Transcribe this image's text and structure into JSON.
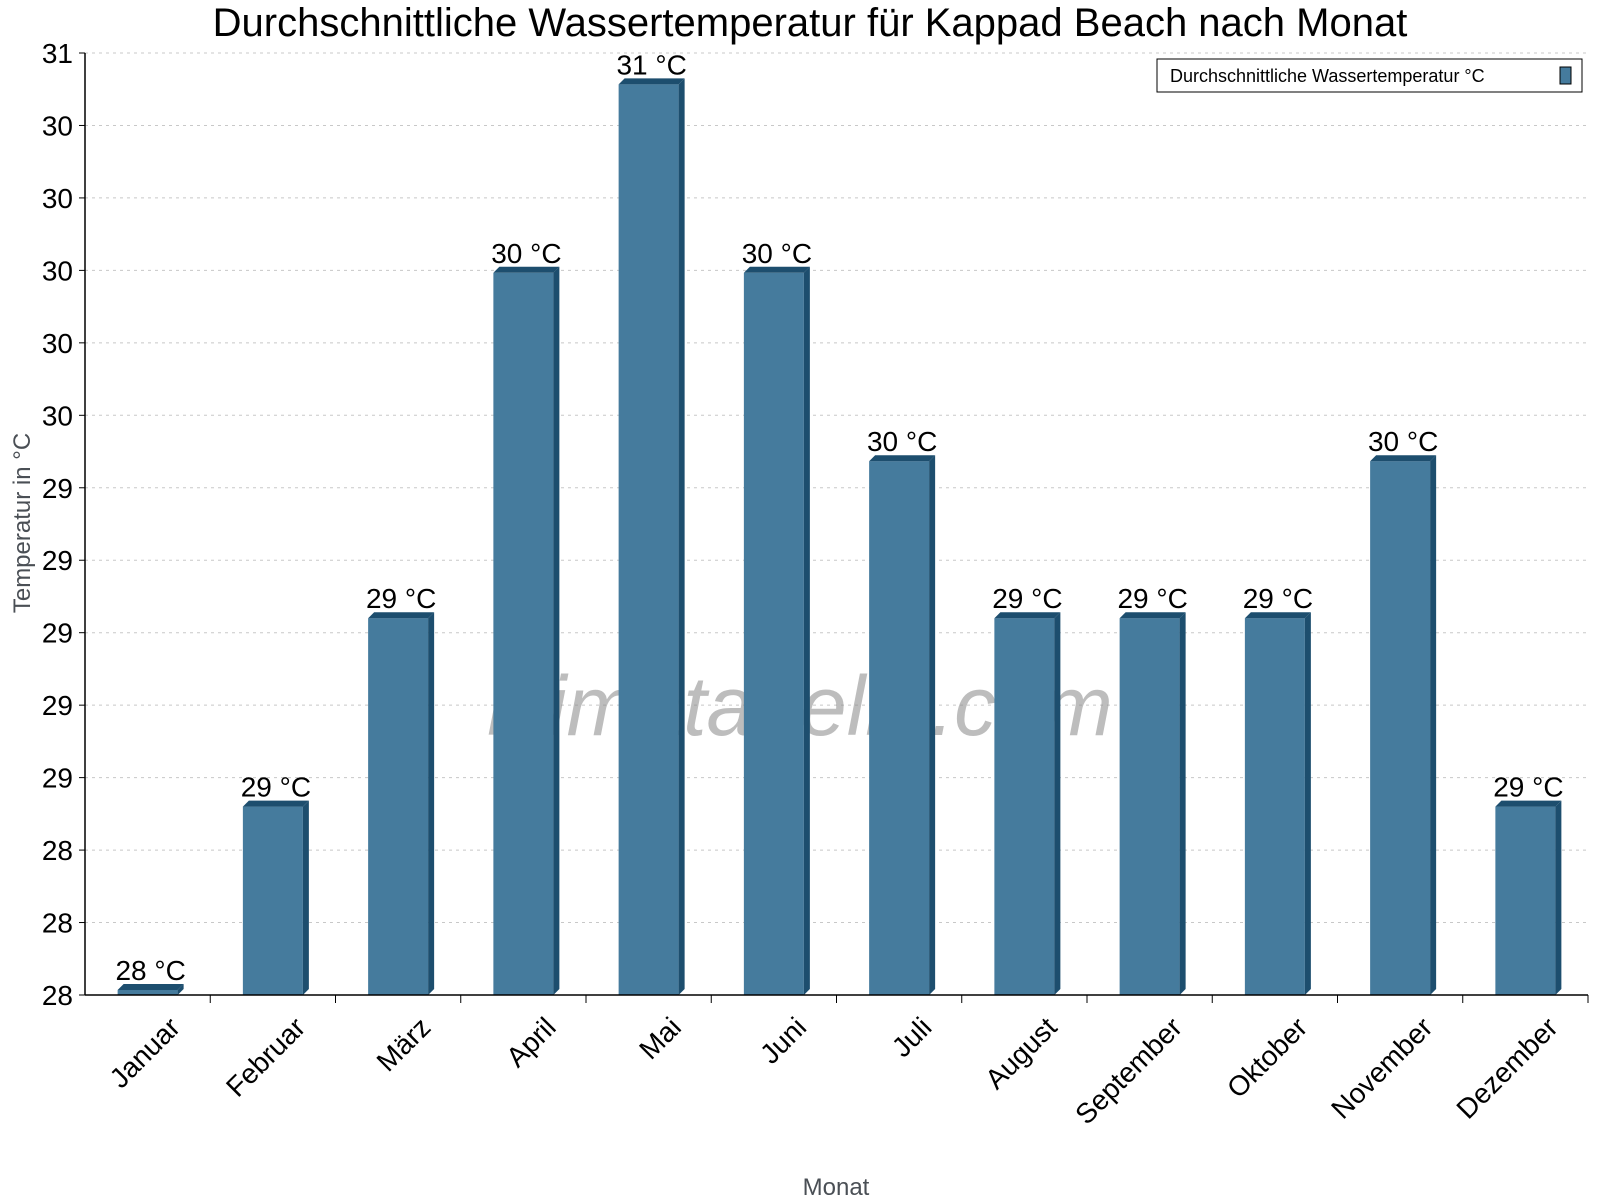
{
  "chart_data": {
    "type": "bar",
    "title": "Durchschnittliche Wassertemperatur für Kappad Beach nach Monat",
    "xlabel": "Monat",
    "ylabel": "Temperatur in °C",
    "categories": [
      "Januar",
      "Februar",
      "März",
      "April",
      "Mai",
      "Juni",
      "Juli",
      "August",
      "September",
      "Oktober",
      "November",
      "Dezember"
    ],
    "series": [
      {
        "name": "Durchschnittliche Wassertemperatur °C",
        "values": [
          28.0,
          28.6,
          29.2,
          30.3,
          30.9,
          30.3,
          29.7,
          29.2,
          29.2,
          29.2,
          29.7,
          28.6
        ]
      }
    ],
    "data_labels": [
      "28 °C",
      "29 °C",
      "29 °C",
      "30 °C",
      "31 °C",
      "30 °C",
      "30 °C",
      "29 °C",
      "29 °C",
      "29 °C",
      "30 °C",
      "29 °C"
    ],
    "ylim": [
      28,
      31
    ],
    "y_tick_labels": [
      "28",
      "28",
      "28",
      "29",
      "29",
      "29",
      "29",
      "29",
      "30",
      "30",
      "30",
      "30",
      "30",
      "31"
    ],
    "grid": true,
    "legend_position": "top-right",
    "colors": {
      "bar": "#457b9d",
      "bar_dark": "#1d4e6e"
    },
    "watermark": "klimatabelle.com"
  }
}
